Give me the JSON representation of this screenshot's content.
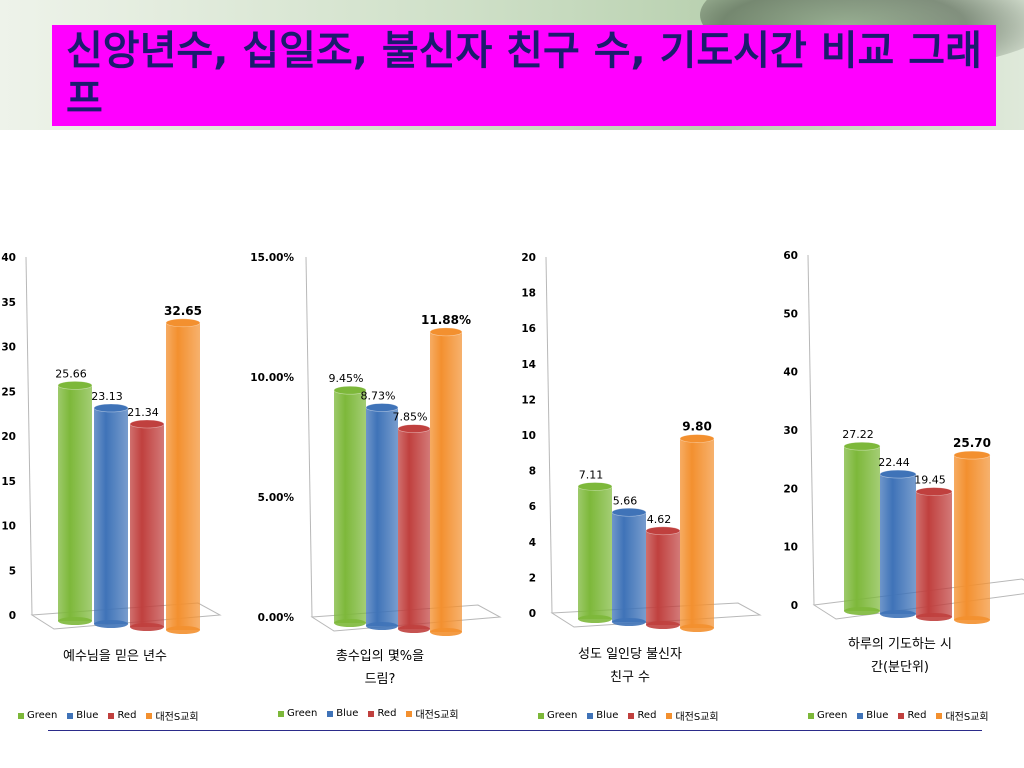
{
  "slide": {
    "title": "신앙년수, 십일조, 불신자 친구 수, 기도시간 비교 그래프"
  },
  "colors": {
    "green": "#7db83a",
    "blue": "#3f73b8",
    "red": "#c0403e",
    "orange": "#f3902f",
    "title_bg": "#ff00ff",
    "title_text": "#1b1b6e"
  },
  "legend": [
    "Green",
    "Blue",
    "Red",
    "대전S교회"
  ],
  "chart_data": [
    {
      "type": "bar",
      "category_label": "예수님을 믿은 년수",
      "series": [
        {
          "name": "Green",
          "values": [
            25.66
          ],
          "label": "25.66"
        },
        {
          "name": "Blue",
          "values": [
            23.13
          ],
          "label": "23.13"
        },
        {
          "name": "Red",
          "values": [
            21.34
          ],
          "label": "21.34"
        },
        {
          "name": "대전S교회",
          "values": [
            32.65
          ],
          "label": "32.65"
        }
      ],
      "ylim": [
        0,
        40
      ],
      "yticks": [
        "0",
        "5",
        "10",
        "15",
        "20",
        "25",
        "30",
        "35",
        "40"
      ],
      "legend_position": "bottom"
    },
    {
      "type": "bar",
      "category_label": "총수입의 몇%을 드림?",
      "series": [
        {
          "name": "Green",
          "values": [
            9.45
          ],
          "label": "9.45%"
        },
        {
          "name": "Blue",
          "values": [
            8.73
          ],
          "label": "8.73%"
        },
        {
          "name": "Red",
          "values": [
            7.85
          ],
          "label": "7.85%"
        },
        {
          "name": "대전S교회",
          "values": [
            11.88
          ],
          "label": "11.88%"
        }
      ],
      "ylim": [
        0,
        15
      ],
      "yticks": [
        "0.00%",
        "5.00%",
        "10.00%",
        "15.00%"
      ],
      "legend_position": "bottom"
    },
    {
      "type": "bar",
      "category_label": "성도 일인당 불신자 친구 수",
      "series": [
        {
          "name": "Green",
          "values": [
            7.11
          ],
          "label": "7.11"
        },
        {
          "name": "Blue",
          "values": [
            5.66
          ],
          "label": "5.66"
        },
        {
          "name": "Red",
          "values": [
            4.62
          ],
          "label": "4.62"
        },
        {
          "name": "대전S교회",
          "values": [
            9.8
          ],
          "label": "9.80"
        }
      ],
      "ylim": [
        0,
        20
      ],
      "yticks": [
        "0",
        "2",
        "4",
        "6",
        "8",
        "10",
        "12",
        "14",
        "16",
        "18",
        "20"
      ],
      "legend_position": "bottom"
    },
    {
      "type": "bar",
      "category_label": "하루의 기도하는 시간(분단위)",
      "series": [
        {
          "name": "Green",
          "values": [
            27.22
          ],
          "label": "27.22"
        },
        {
          "name": "Blue",
          "values": [
            22.44
          ],
          "label": "22.44"
        },
        {
          "name": "Red",
          "values": [
            19.45
          ],
          "label": "19.45"
        },
        {
          "name": "대전S교회",
          "values": [
            25.7
          ],
          "label": "25.70"
        }
      ],
      "ylim": [
        0,
        60
      ],
      "yticks": [
        "0",
        "10",
        "20",
        "30",
        "40",
        "50",
        "60"
      ],
      "legend_position": "bottom"
    }
  ]
}
